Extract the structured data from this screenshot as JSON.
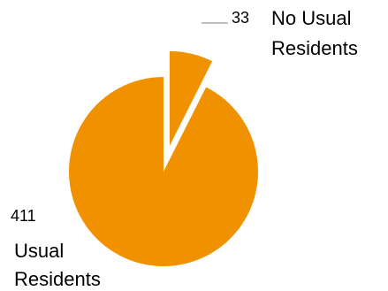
{
  "chart_data": {
    "type": "pie",
    "exploded": true,
    "legend": "none",
    "slices": [
      {
        "label": "No Usual Residents",
        "label_lines": [
          "No Usual",
          "Residents"
        ],
        "value": 33,
        "value_label": "33",
        "color": "#F09100"
      },
      {
        "label": "Usual Residents",
        "label_lines": [
          "Usual",
          "Residents"
        ],
        "value": 411,
        "value_label": "411",
        "color": "#F09100"
      }
    ],
    "leader_line_color": "#7f7f7f"
  }
}
